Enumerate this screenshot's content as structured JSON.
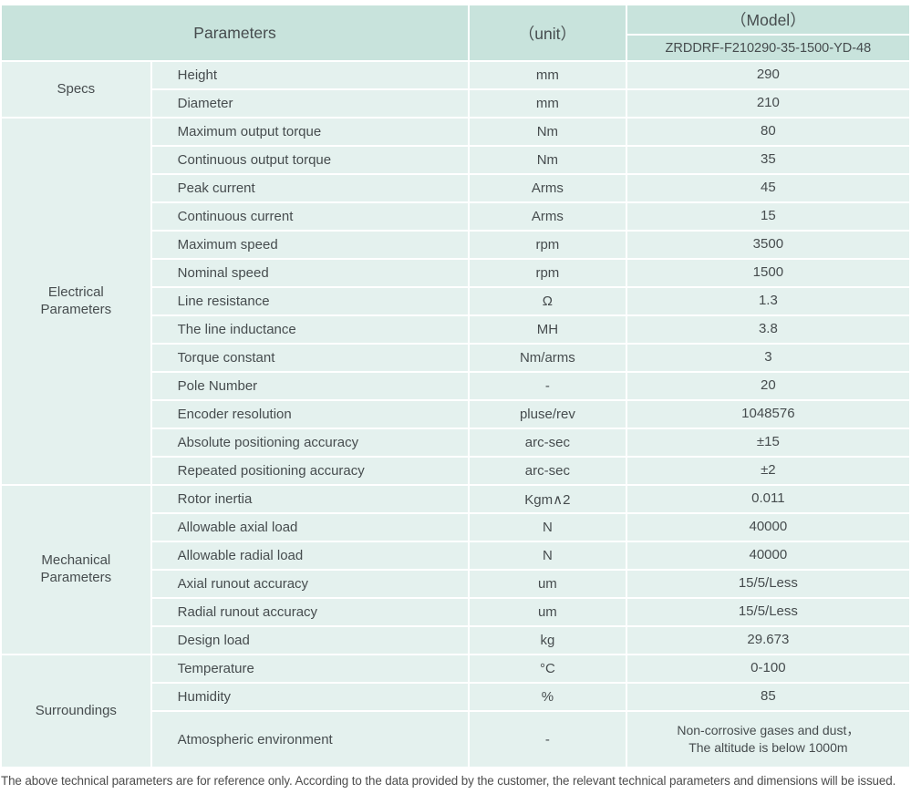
{
  "table": {
    "header": {
      "parameters": "Parameters",
      "unit": "（unit）",
      "model": "（Model）",
      "model_number": "ZRDDRF-F210290-35-1500-YD-48"
    },
    "sections": [
      {
        "group": "Specs",
        "rows": [
          {
            "name": "Height",
            "unit": "mm",
            "value": "290"
          },
          {
            "name": "Diameter",
            "unit": "mm",
            "value": "210"
          }
        ]
      },
      {
        "group": "Electrical Parameters",
        "rows": [
          {
            "name": "Maximum output torque",
            "unit": "Nm",
            "value": "80"
          },
          {
            "name": "Continuous output torque",
            "unit": "Nm",
            "value": "35"
          },
          {
            "name": "Peak current",
            "unit": "Arms",
            "value": "45"
          },
          {
            "name": "Continuous current",
            "unit": "Arms",
            "value": "15"
          },
          {
            "name": "Maximum speed",
            "unit": "rpm",
            "value": "3500"
          },
          {
            "name": "Nominal speed",
            "unit": "rpm",
            "value": "1500"
          },
          {
            "name": "Line resistance",
            "unit": "Ω",
            "value": "1.3"
          },
          {
            "name": "The line inductance",
            "unit": "MH",
            "value": "3.8"
          },
          {
            "name": "Torque constant",
            "unit": "Nm/arms",
            "value": "3"
          },
          {
            "name": "Pole Number",
            "unit": "-",
            "value": "20"
          },
          {
            "name": "Encoder resolution",
            "unit": "pluse/rev",
            "value": "1048576"
          },
          {
            "name": "Absolute positioning accuracy",
            "unit": "arc-sec",
            "value": "±15"
          },
          {
            "name": "Repeated positioning accuracy",
            "unit": "arc-sec",
            "value": "±2"
          }
        ]
      },
      {
        "group": "Mechanical Parameters",
        "rows": [
          {
            "name": "Rotor inertia",
            "unit": "Kgm∧2",
            "value": "0.011"
          },
          {
            "name": "Allowable axial load",
            "unit": "N",
            "value": "40000"
          },
          {
            "name": "Allowable radial load",
            "unit": "N",
            "value": "40000"
          },
          {
            "name": "Axial runout accuracy",
            "unit": "um",
            "value": "15/5/Less"
          },
          {
            "name": "Radial runout accuracy",
            "unit": "um",
            "value": "15/5/Less"
          },
          {
            "name": "Design load",
            "unit": "kg",
            "value": "29.673"
          }
        ]
      },
      {
        "group": "Surroundings",
        "rows": [
          {
            "name": "Temperature",
            "unit": "°C",
            "value": "0-100"
          },
          {
            "name": "Humidity",
            "unit": "%",
            "value": "85"
          },
          {
            "name": "Atmospheric environment",
            "unit": "-",
            "value": "Non-corrosive gases and dust，\nThe altitude is below 1000m",
            "tall": true
          }
        ]
      }
    ]
  },
  "footnote": "The above technical parameters are for reference only. According to the data provided by the customer, the relevant technical parameters and dimensions will be issued.",
  "colors": {
    "header_bg": "#c8e3dc",
    "row_bg": "#e4f1ee",
    "text": "#464c4e"
  }
}
